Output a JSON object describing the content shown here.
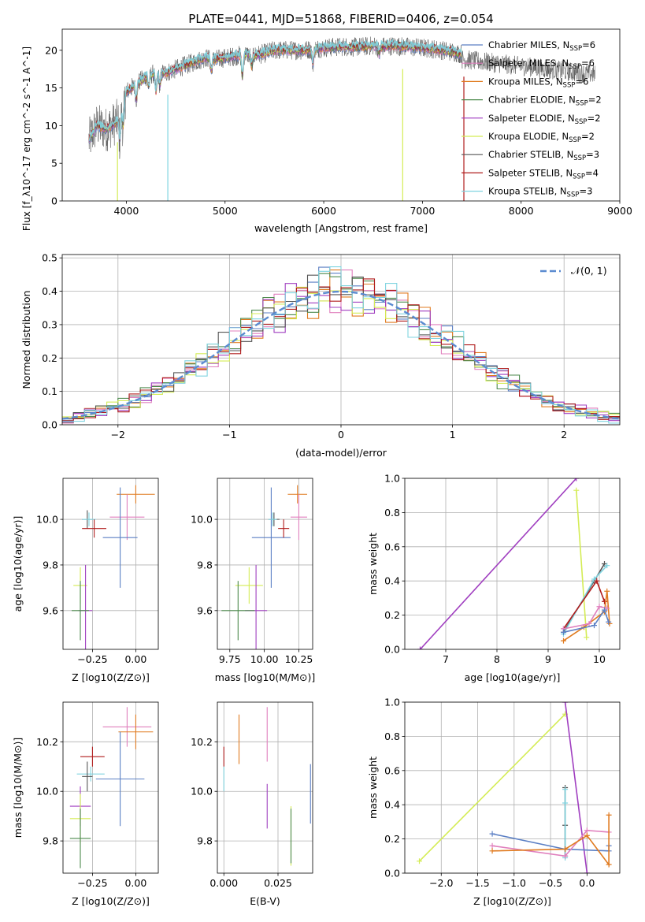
{
  "title": "PLATE=0441, MJD=51868, FIBERID=0406, z=0.054",
  "colors": {
    "Chabrier MILES": "#5b7fc4",
    "Salpeter MILES": "#e07fbd",
    "Kroupa MILES": "#e07b20",
    "Chabrier ELODIE": "#4d8a4d",
    "Salpeter ELODIE": "#a03fc0",
    "Kroupa ELODIE": "#d4ec55",
    "Chabrier STELIB": "#555555",
    "Salpeter STELIB": "#b01c1c",
    "Kroupa STELIB": "#80d4e0"
  },
  "chart_data": [
    {
      "id": "spectrum",
      "type": "line",
      "title": "PLATE=0441, MJD=51868, FIBERID=0406, z=0.054",
      "xlabel": "wavelength [Angstrom, rest frame]",
      "ylabel": "Flux [f_λ10^-17 erg cm^-2 s^-1 A^-1]",
      "xlim": [
        3350,
        9000
      ],
      "ylim": [
        0,
        22.8
      ],
      "xticks": [
        "4000",
        "5000",
        "6000",
        "7000",
        "8000",
        "9000"
      ],
      "yticks": [
        "0",
        "5",
        "10",
        "15",
        "20"
      ],
      "legend_position": "top-right",
      "legend": [
        {
          "label": "Chabrier MILES, N",
          "sub": "SSP",
          "suffix": "=6"
        },
        {
          "label": "Salpeter MILES, N",
          "sub": "SSP",
          "suffix": "=6"
        },
        {
          "label": "Kroupa MILES, N",
          "sub": "SSP",
          "suffix": "=6"
        },
        {
          "label": "Chabrier ELODIE, N",
          "sub": "SSP",
          "suffix": "=2"
        },
        {
          "label": "Salpeter ELODIE, N",
          "sub": "SSP",
          "suffix": "=2"
        },
        {
          "label": "Kroupa ELODIE, N",
          "sub": "SSP",
          "suffix": "=2"
        },
        {
          "label": "Chabrier STELIB, N",
          "sub": "SSP",
          "suffix": "=3"
        },
        {
          "label": "Salpeter STELIB, N",
          "sub": "SSP",
          "suffix": "=4"
        },
        {
          "label": "Kroupa STELIB, N",
          "sub": "SSP",
          "suffix": "=3"
        }
      ],
      "data_anchors": {
        "x": [
          3620,
          3700,
          3800,
          3900,
          3950,
          4000,
          4100,
          4200,
          4300,
          4400,
          4500,
          4600,
          4700,
          4800,
          4900,
          5000,
          5100,
          5200,
          5300,
          5400,
          5500,
          5600,
          5700,
          5800,
          5900,
          6000,
          6100,
          6200,
          6300,
          6400,
          6500,
          6600,
          6700,
          6800,
          6900,
          7000,
          7100,
          7200,
          7300,
          7400
        ],
        "y": [
          8.0,
          10.0,
          9.5,
          10.5,
          12.0,
          14.5,
          15.5,
          16.5,
          17.0,
          17.0,
          17.5,
          18.0,
          18.5,
          19.0,
          18.8,
          19.0,
          19.2,
          19.5,
          19.3,
          19.6,
          20.0,
          20.0,
          20.0,
          20.0,
          20.2,
          20.3,
          20.4,
          20.5,
          20.4,
          20.5,
          20.6,
          20.5,
          20.6,
          20.5,
          20.4,
          20.3,
          20.2,
          20.0,
          19.8,
          19.5
        ]
      },
      "observed_extension": {
        "x": [
          7400,
          7600,
          7800,
          8000,
          8200,
          8400,
          8600,
          8750
        ],
        "y": [
          18.8,
          18.5,
          18.2,
          17.9,
          17.6,
          17.3,
          17.0,
          16.8
        ]
      },
      "truncations": [
        {
          "series": "Kroupa ELODIE",
          "x": 3910
        },
        {
          "series": "Kroupa STELIB",
          "x": 4420
        },
        {
          "series": "Kroupa ELODIE",
          "x": 6800
        },
        {
          "series": "Salpeter STELIB",
          "x": 7420
        }
      ]
    },
    {
      "id": "residuals",
      "type": "histogram",
      "xlabel": "(data-model)/error",
      "ylabel": "Normed distribution",
      "xlim": [
        -2.5,
        2.5
      ],
      "ylim": [
        0,
        0.51
      ],
      "xticks": [
        "−2",
        "−1",
        "0",
        "1",
        "2"
      ],
      "yticks": [
        "0.0",
        "0.1",
        "0.2",
        "0.3",
        "0.4",
        "0.5"
      ],
      "grid": true,
      "legend_position": "top-right",
      "legend": [
        {
          "label": "𝒩(0, 1)"
        }
      ],
      "bin_width": 0.1,
      "bins_from": -2.5,
      "reference_curve": "normal(0,1)"
    },
    {
      "id": "age-vs-Z",
      "type": "errorbar",
      "xlabel": "Z [log10(Z/Z⊙)]",
      "ylabel": "age  [log10(age/yr)]",
      "xlim": [
        -0.42,
        0.13
      ],
      "ylim": [
        9.43,
        10.18
      ],
      "xticks": [
        "−0.25",
        "0.00"
      ],
      "yticks": [
        "9.6",
        "9.8",
        "10.0"
      ],
      "grid": true,
      "points": [
        {
          "series": "Kroupa MILES",
          "x": 0.0,
          "y": 10.11,
          "xerr": 0.11,
          "yerr": 0.04
        },
        {
          "series": "Salpeter MILES",
          "x": -0.05,
          "y": 10.01,
          "xerr": 0.1,
          "yerr": 0.1
        },
        {
          "series": "Chabrier MILES",
          "x": -0.09,
          "y": 9.92,
          "xerr": 0.1,
          "yerr": 0.22
        },
        {
          "series": "Chabrier STELIB",
          "x": -0.28,
          "y": 10.0,
          "xerr": 0.03,
          "yerr": 0.04
        },
        {
          "series": "Kroupa STELIB",
          "x": -0.27,
          "y": 10.0,
          "xerr": 0.04,
          "yerr": 0.03
        },
        {
          "series": "Salpeter STELIB",
          "x": -0.24,
          "y": 9.96,
          "xerr": 0.07,
          "yerr": 0.04
        },
        {
          "series": "Kroupa ELODIE",
          "x": -0.32,
          "y": 9.71,
          "xerr": 0.04,
          "yerr": 0.08
        },
        {
          "series": "Salpeter ELODIE",
          "x": -0.29,
          "y": 9.6,
          "xerr": 0.04,
          "yerr": 0.2
        },
        {
          "series": "Chabrier ELODIE",
          "x": -0.32,
          "y": 9.6,
          "xerr": 0.05,
          "yerr": 0.13
        }
      ]
    },
    {
      "id": "age-vs-mass",
      "type": "errorbar",
      "xlabel": "mass [log10(M/M⊙)]",
      "ylabel": "",
      "xlim": [
        9.66,
        10.35
      ],
      "ylim": [
        9.43,
        10.18
      ],
      "xticks": [
        "9.75",
        "10.00",
        "10.25"
      ],
      "yticks": [
        "9.6",
        "9.8",
        "10.0"
      ],
      "grid": true,
      "points": [
        {
          "series": "Kroupa MILES",
          "x": 10.24,
          "y": 10.11,
          "xerr": 0.07,
          "yerr": 0.04
        },
        {
          "series": "Salpeter MILES",
          "x": 10.25,
          "y": 10.01,
          "xerr": 0.06,
          "yerr": 0.1
        },
        {
          "series": "Chabrier MILES",
          "x": 10.05,
          "y": 9.92,
          "xerr": 0.14,
          "yerr": 0.22
        },
        {
          "series": "Chabrier STELIB",
          "x": 10.07,
          "y": 10.0,
          "xerr": 0.04,
          "yerr": 0.03
        },
        {
          "series": "Kroupa STELIB",
          "x": 10.06,
          "y": 10.0,
          "xerr": 0.03,
          "yerr": 0.03
        },
        {
          "series": "Salpeter STELIB",
          "x": 10.14,
          "y": 9.96,
          "xerr": 0.04,
          "yerr": 0.04
        },
        {
          "series": "Kroupa ELODIE",
          "x": 9.89,
          "y": 9.71,
          "xerr": 0.1,
          "yerr": 0.08
        },
        {
          "series": "Salpeter ELODIE",
          "x": 9.94,
          "y": 9.6,
          "xerr": 0.08,
          "yerr": 0.2
        },
        {
          "series": "Chabrier ELODIE",
          "x": 9.81,
          "y": 9.6,
          "xerr": 0.12,
          "yerr": 0.13
        }
      ]
    },
    {
      "id": "mass-weight-vs-age",
      "type": "line",
      "xlabel": "age  [log10(age/yr)]",
      "ylabel": "mass weight",
      "xlim": [
        6.2,
        10.4
      ],
      "ylim": [
        0,
        1.0
      ],
      "xticks": [
        "7",
        "8",
        "9",
        "10"
      ],
      "yticks": [
        "0.0",
        "0.2",
        "0.4",
        "0.6",
        "0.8",
        "1.0"
      ],
      "grid": true,
      "series": [
        {
          "name": "Salpeter ELODIE",
          "x": [
            6.5,
            9.55
          ],
          "y": [
            0.0,
            1.0
          ]
        },
        {
          "name": "Kroupa ELODIE",
          "x": [
            9.55,
            9.75
          ],
          "y": [
            0.93,
            0.07
          ]
        },
        {
          "name": "Chabrier STELIB",
          "x": [
            9.3,
            9.9,
            10.1
          ],
          "y": [
            0.1,
            0.4,
            0.5
          ]
        },
        {
          "name": "Kroupa STELIB",
          "x": [
            9.3,
            9.9,
            10.15
          ],
          "y": [
            0.09,
            0.41,
            0.49
          ]
        },
        {
          "name": "Salpeter STELIB",
          "x": [
            9.3,
            9.95,
            10.1
          ],
          "y": [
            0.12,
            0.4,
            0.28
          ]
        },
        {
          "name": "Kroupa MILES",
          "x": [
            9.3,
            9.7,
            10.1,
            10.15,
            10.2
          ],
          "y": [
            0.05,
            0.13,
            0.22,
            0.34,
            0.15
          ]
        },
        {
          "name": "Salpeter MILES",
          "x": [
            9.3,
            9.8,
            10.0,
            10.15
          ],
          "y": [
            0.12,
            0.15,
            0.25,
            0.24
          ]
        },
        {
          "name": "Chabrier MILES",
          "x": [
            9.3,
            9.9,
            10.1,
            10.18
          ],
          "y": [
            0.1,
            0.14,
            0.23,
            0.16
          ]
        }
      ]
    },
    {
      "id": "mass-vs-Z",
      "type": "errorbar",
      "xlabel": "Z [log10(Z/Z⊙)]",
      "ylabel": "mass [log10(M/M⊙)]",
      "xlim": [
        -0.42,
        0.13
      ],
      "ylim": [
        9.67,
        10.36
      ],
      "xticks": [
        "−0.25",
        "0.00"
      ],
      "yticks": [
        "9.8",
        "10.0",
        "10.2"
      ],
      "grid": true,
      "points": [
        {
          "series": "Salpeter MILES",
          "x": -0.05,
          "y": 10.26,
          "xerr": 0.14,
          "yerr": 0.08
        },
        {
          "series": "Kroupa MILES",
          "x": 0.0,
          "y": 10.24,
          "xerr": 0.1,
          "yerr": 0.07
        },
        {
          "series": "Salpeter STELIB",
          "x": -0.25,
          "y": 10.14,
          "xerr": 0.07,
          "yerr": 0.04
        },
        {
          "series": "Kroupa STELIB",
          "x": -0.26,
          "y": 10.07,
          "xerr": 0.08,
          "yerr": 0.03
        },
        {
          "series": "Chabrier STELIB",
          "x": -0.28,
          "y": 10.06,
          "xerr": 0.03,
          "yerr": 0.06
        },
        {
          "series": "Chabrier MILES",
          "x": -0.09,
          "y": 10.05,
          "xerr": 0.14,
          "yerr": 0.19
        },
        {
          "series": "Salpeter ELODIE",
          "x": -0.32,
          "y": 9.94,
          "xerr": 0.06,
          "yerr": 0.08
        },
        {
          "series": "Kroupa ELODIE",
          "x": -0.32,
          "y": 9.89,
          "xerr": 0.06,
          "yerr": 0.1
        },
        {
          "series": "Chabrier ELODIE",
          "x": -0.32,
          "y": 9.81,
          "xerr": 0.06,
          "yerr": 0.12
        }
      ]
    },
    {
      "id": "mass-vs-EBV",
      "type": "errorbar",
      "xlabel": "E(B-V)",
      "ylabel": "",
      "xlim": [
        -0.003,
        0.041
      ],
      "ylim": [
        9.67,
        10.36
      ],
      "xticks": [
        "0.000",
        "0.025"
      ],
      "yticks": [
        "9.8",
        "10.0",
        "10.2"
      ],
      "grid": true,
      "points": [
        {
          "series": "Salpeter STELIB",
          "x": 0.0,
          "y": 10.14,
          "xerr": 0.0,
          "yerr": 0.04
        },
        {
          "series": "Kroupa STELIB",
          "x": 0.0,
          "y": 10.05,
          "xerr": 0.0,
          "yerr": 0.05
        },
        {
          "series": "Kroupa MILES",
          "x": 0.007,
          "y": 10.21,
          "xerr": 0.0,
          "yerr": 0.1
        },
        {
          "series": "Salpeter MILES",
          "x": 0.02,
          "y": 10.23,
          "xerr": 0.0,
          "yerr": 0.11
        },
        {
          "series": "Salpeter ELODIE",
          "x": 0.02,
          "y": 9.94,
          "xerr": 0.0,
          "yerr": 0.09
        },
        {
          "series": "Kroupa ELODIE",
          "x": 0.031,
          "y": 9.82,
          "xerr": 0.0,
          "yerr": 0.12
        },
        {
          "series": "Chabrier ELODIE",
          "x": 0.031,
          "y": 9.82,
          "xerr": 0.0,
          "yerr": 0.11
        },
        {
          "series": "Chabrier MILES",
          "x": 0.04,
          "y": 9.99,
          "xerr": 0.0,
          "yerr": 0.12
        }
      ]
    },
    {
      "id": "mass-weight-vs-Z",
      "type": "line",
      "xlabel": "Z [log10(Z/Z⊙)]",
      "ylabel": "mass weight",
      "xlim": [
        -2.5,
        0.45
      ],
      "ylim": [
        0,
        1.0
      ],
      "xticks": [
        "−2.0",
        "−1.5",
        "−1.0",
        "−0.5",
        "0.0"
      ],
      "yticks": [
        "0.0",
        "0.2",
        "0.4",
        "0.6",
        "0.8",
        "1.0"
      ],
      "grid": true,
      "series": [
        {
          "name": "Kroupa ELODIE",
          "x": [
            -2.3,
            -0.3
          ],
          "y": [
            0.07,
            0.93
          ]
        },
        {
          "name": "Salpeter ELODIE",
          "x": [
            -0.3,
            0.0
          ],
          "y": [
            1.0,
            0.0
          ]
        },
        {
          "name": "Chabrier STELIB",
          "x": [
            -0.3,
            -0.3,
            -0.3
          ],
          "y": [
            0.1,
            0.28,
            0.5
          ]
        },
        {
          "name": "Kroupa STELIB",
          "x": [
            -0.3,
            -0.3,
            -0.3
          ],
          "y": [
            0.09,
            0.41,
            0.49
          ]
        },
        {
          "name": "Chabrier MILES",
          "x": [
            -1.3,
            -0.3,
            0.3,
            0.3
          ],
          "y": [
            0.23,
            0.14,
            0.13,
            0.16
          ]
        },
        {
          "name": "Salpeter MILES",
          "x": [
            -1.3,
            -0.3,
            0.0,
            0.3
          ],
          "y": [
            0.16,
            0.1,
            0.25,
            0.24
          ]
        },
        {
          "name": "Kroupa MILES",
          "x": [
            -1.3,
            -0.3,
            0.0,
            0.3,
            0.3
          ],
          "y": [
            0.13,
            0.14,
            0.22,
            0.05,
            0.34
          ]
        }
      ]
    }
  ]
}
